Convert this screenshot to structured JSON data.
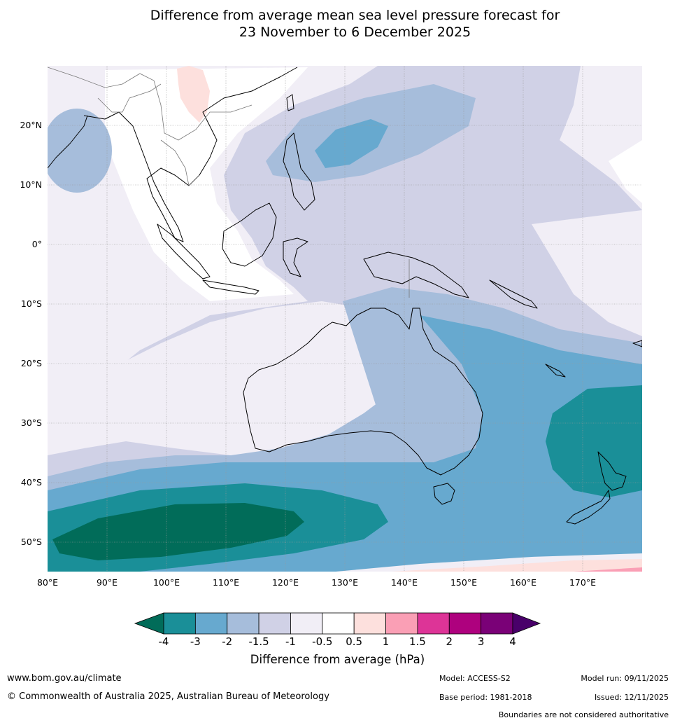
{
  "title": {
    "line1": "Difference from average mean sea level pressure forecast for",
    "line2": "23 November to 6 December 2025"
  },
  "map": {
    "lat_labels": [
      "20°N",
      "10°N",
      "0°",
      "10°S",
      "20°S",
      "30°S",
      "40°S",
      "50°S"
    ],
    "lon_labels": [
      "80°E",
      "90°E",
      "100°E",
      "110°E",
      "120°E",
      "130°E",
      "140°E",
      "150°E",
      "160°E",
      "170°E"
    ]
  },
  "colorbar": {
    "ticks": [
      "-4",
      "-3",
      "-2",
      "-1.5",
      "-1",
      "-0.5",
      "0.5",
      "1",
      "1.5",
      "2",
      "3",
      "4"
    ],
    "label": "Difference from average (hPa)",
    "colors": [
      "#1a8f98",
      "#67a9cf",
      "#a6bddb",
      "#d0d1e6",
      "#f1eef6",
      "#ffffff",
      "#fde0dd",
      "#fa9fb5",
      "#dd3497",
      "#ae017e",
      "#7a0177"
    ],
    "under_color": "#016c59",
    "over_color": "#49006a"
  },
  "footer": {
    "website": "www.bom.gov.au/climate",
    "copyright": "© Commonwealth of Australia 2025, Australian Bureau of Meteorology",
    "model": "Model: ACCESS-S2",
    "base_period": "Base period: 1981-2018",
    "model_run": "Model run: 09/11/2025",
    "issued": "Issued: 12/11/2025",
    "disclaimer": "Boundaries are not considered authoritative"
  }
}
